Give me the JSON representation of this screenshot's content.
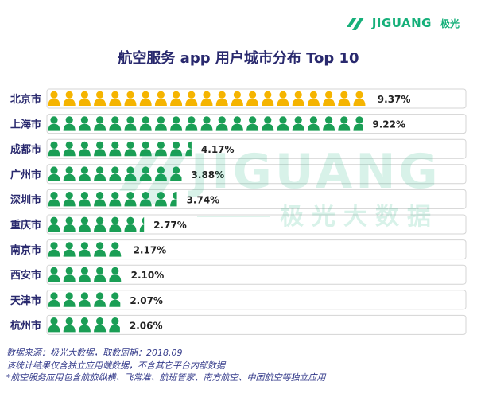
{
  "brand": {
    "name": "JIGUANG",
    "cn": "极光",
    "accent": "#16b07a"
  },
  "watermark": {
    "text": "JIGUANG",
    "cn": "极光大数据"
  },
  "colors": {
    "highlight": "#f5b400",
    "normal": "#1a9e55",
    "label": "#29296e",
    "row_border": "#d4d4d4"
  },
  "chart_data": {
    "type": "bar",
    "title": "航空服务 app 用户城市分布 Top 10",
    "categories": [
      "北京市",
      "上海市",
      "成都市",
      "广州市",
      "深圳市",
      "重庆市",
      "南京市",
      "西安市",
      "天津市",
      "杭州市"
    ],
    "values": [
      9.37,
      9.22,
      4.17,
      3.88,
      3.74,
      2.77,
      2.17,
      2.1,
      2.07,
      2.06
    ],
    "value_labels": [
      "9.37%",
      "9.22%",
      "4.17%",
      "3.88%",
      "3.74%",
      "2.77%",
      "2.17%",
      "2.10%",
      "2.07%",
      "2.06%"
    ],
    "unit": "%",
    "icon": "person-icon",
    "icon_value": 0.45,
    "highlight_index": 0
  },
  "footer": {
    "line1": "数据来源：极光大数据，取数周期：2018.09",
    "line2": "该统计结果仅含独立应用端数据，不含其它平台内部数据",
    "line3": "*航空服务应用包含航旅纵横、飞常准、航班管家、南方航空、中国航空等独立应用"
  }
}
